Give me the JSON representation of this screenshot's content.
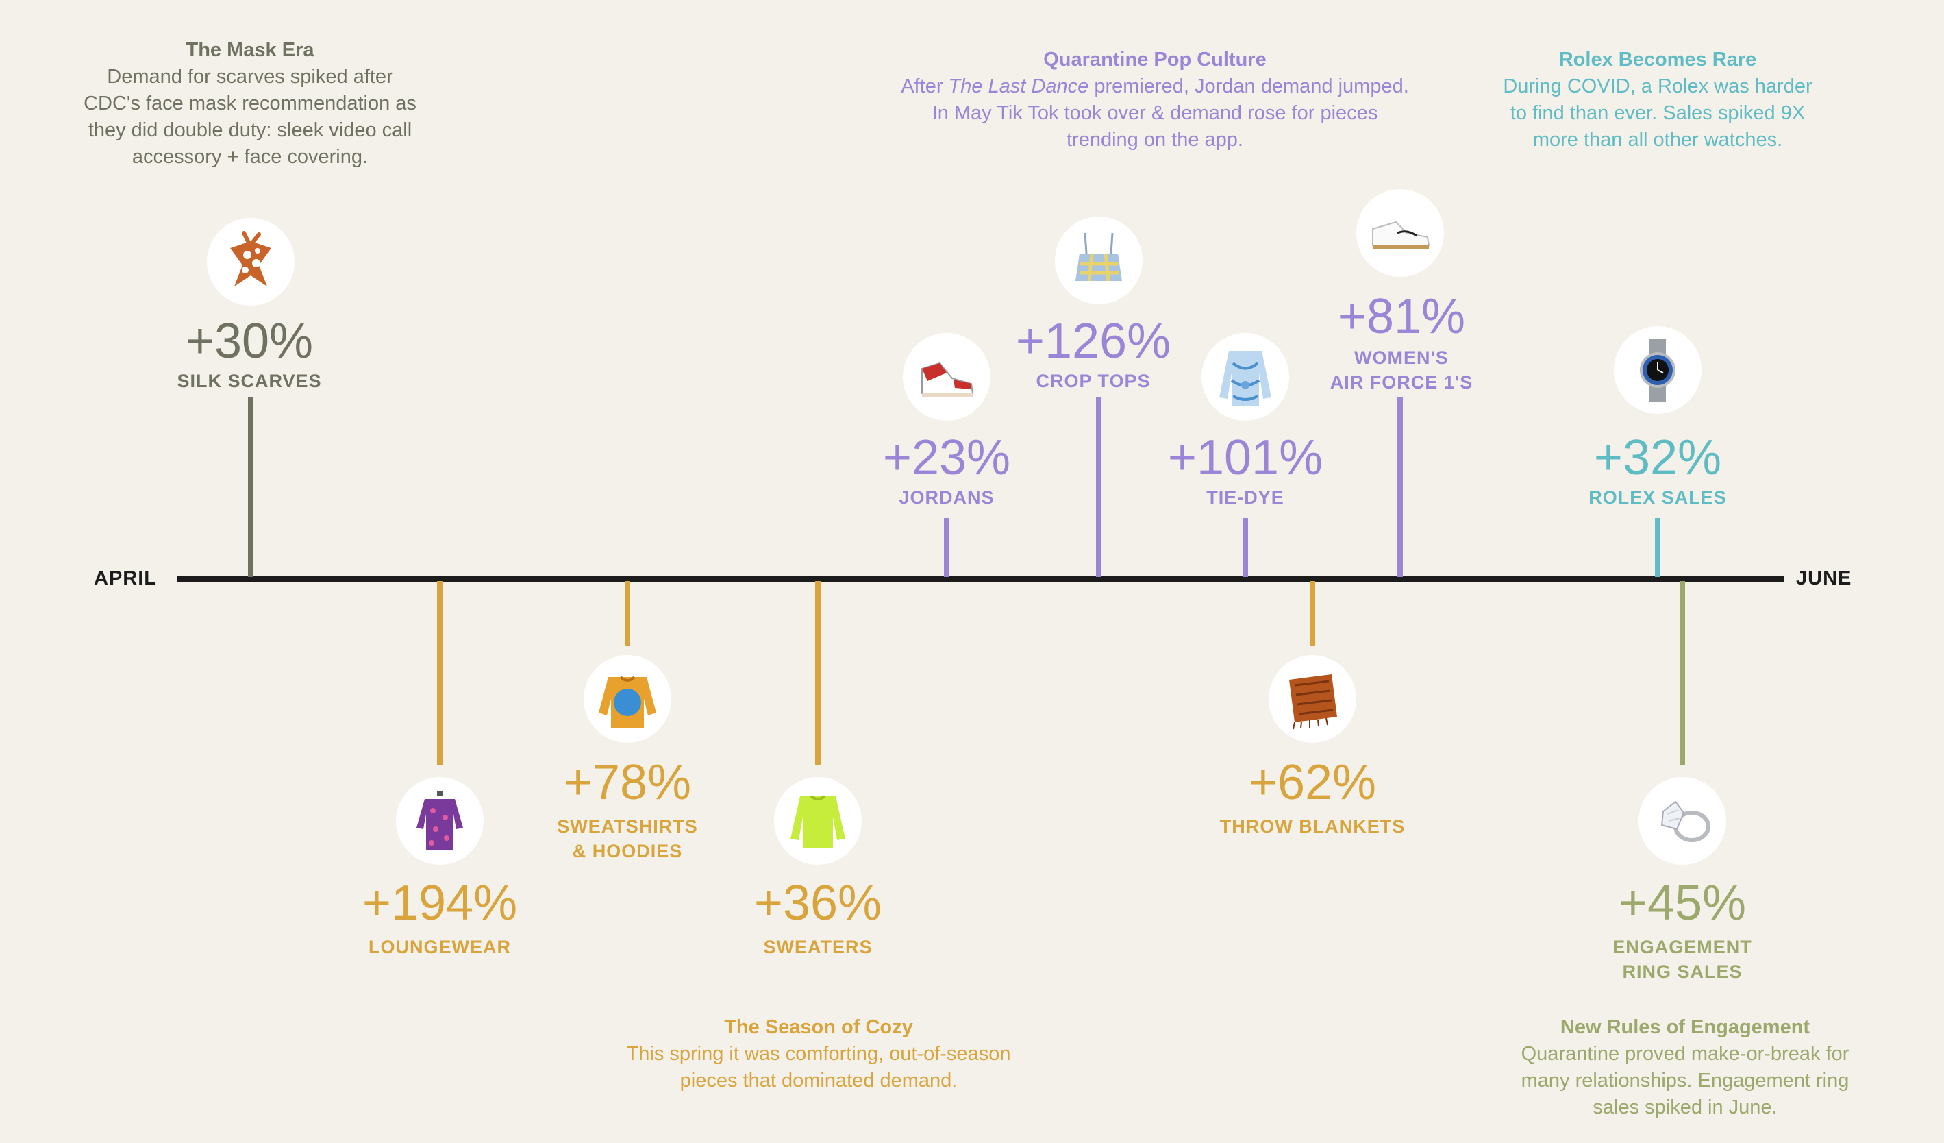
{
  "axis": {
    "start_label": "APRIL",
    "end_label": "JUNE"
  },
  "colors": {
    "olive": "#6f7260",
    "gold": "#d9a43c",
    "purple": "#9a85d6",
    "teal": "#5fbcc4",
    "green": "#9ca86c",
    "axis": "#1c1c1c",
    "background": "#f4f1ea"
  },
  "items": [
    {
      "id": "silk-scarves",
      "value": "+30%",
      "label": "SILK SCARVES",
      "icon": "silk-scarf-icon",
      "color": "#6f7260"
    },
    {
      "id": "loungewear",
      "value": "+194%",
      "label": "LOUNGEWEAR",
      "icon": "loungewear-icon",
      "color": "#d9a43c"
    },
    {
      "id": "sweatshirts",
      "value": "+78%",
      "label_line1": "SWEATSHIRTS",
      "label_line2": "& HOODIES",
      "icon": "sweatshirt-icon",
      "color": "#d9a43c"
    },
    {
      "id": "sweaters",
      "value": "+36%",
      "label": "SWEATERS",
      "icon": "sweater-icon",
      "color": "#d9a43c"
    },
    {
      "id": "jordans",
      "value": "+23%",
      "label": "JORDANS",
      "icon": "sneaker-icon",
      "color": "#9a85d6"
    },
    {
      "id": "crop-tops",
      "value": "+126%",
      "label": "CROP TOPS",
      "icon": "crop-top-icon",
      "color": "#9a85d6"
    },
    {
      "id": "tie-dye",
      "value": "+101%",
      "label": "TIE-DYE",
      "icon": "tie-dye-shirt-icon",
      "color": "#9a85d6"
    },
    {
      "id": "throw-blankets",
      "value": "+62%",
      "label": "THROW BLANKETS",
      "icon": "blanket-icon",
      "color": "#d9a43c"
    },
    {
      "id": "air-force",
      "value": "+81%",
      "label_line1": "WOMEN'S",
      "label_line2": "AIR FORCE 1'S",
      "icon": "white-sneaker-icon",
      "color": "#9a85d6"
    },
    {
      "id": "rolex",
      "value": "+32%",
      "label": "ROLEX SALES",
      "icon": "watch-icon",
      "color": "#5fbcc4"
    },
    {
      "id": "engagement",
      "value": "+45%",
      "label_line1": "ENGAGEMENT",
      "label_line2": "RING SALES",
      "icon": "ring-icon",
      "color": "#9ca86c"
    }
  ],
  "notes": {
    "mask_era": {
      "title": "The Mask Era",
      "lines": [
        "Demand for scarves spiked after",
        "CDC's face mask recommendation as",
        "they did double duty: sleek video call",
        "accessory + face covering."
      ]
    },
    "pop_culture": {
      "title": "Quarantine Pop Culture",
      "line1_pre": "After ",
      "line1_italic": "The Last Dance",
      "line1_post": " premiered, Jordan demand jumped.",
      "lines": [
        "In May Tik Tok took over & demand rose for pieces",
        "trending on the app."
      ]
    },
    "rolex_rare": {
      "title": "Rolex Becomes Rare",
      "lines": [
        "During COVID, a Rolex was harder",
        "to find than ever. Sales spiked 9X",
        "more than all other watches."
      ]
    },
    "season_cozy": {
      "title": "The Season of Cozy",
      "lines": [
        "This spring it was comforting, out-of-season",
        "pieces that dominated demand."
      ]
    },
    "engagement_rules": {
      "title": "New Rules of Engagement",
      "lines": [
        "Quarantine proved make-or-break for",
        "many relationships. Engagement ring",
        "sales spiked in June."
      ]
    }
  }
}
